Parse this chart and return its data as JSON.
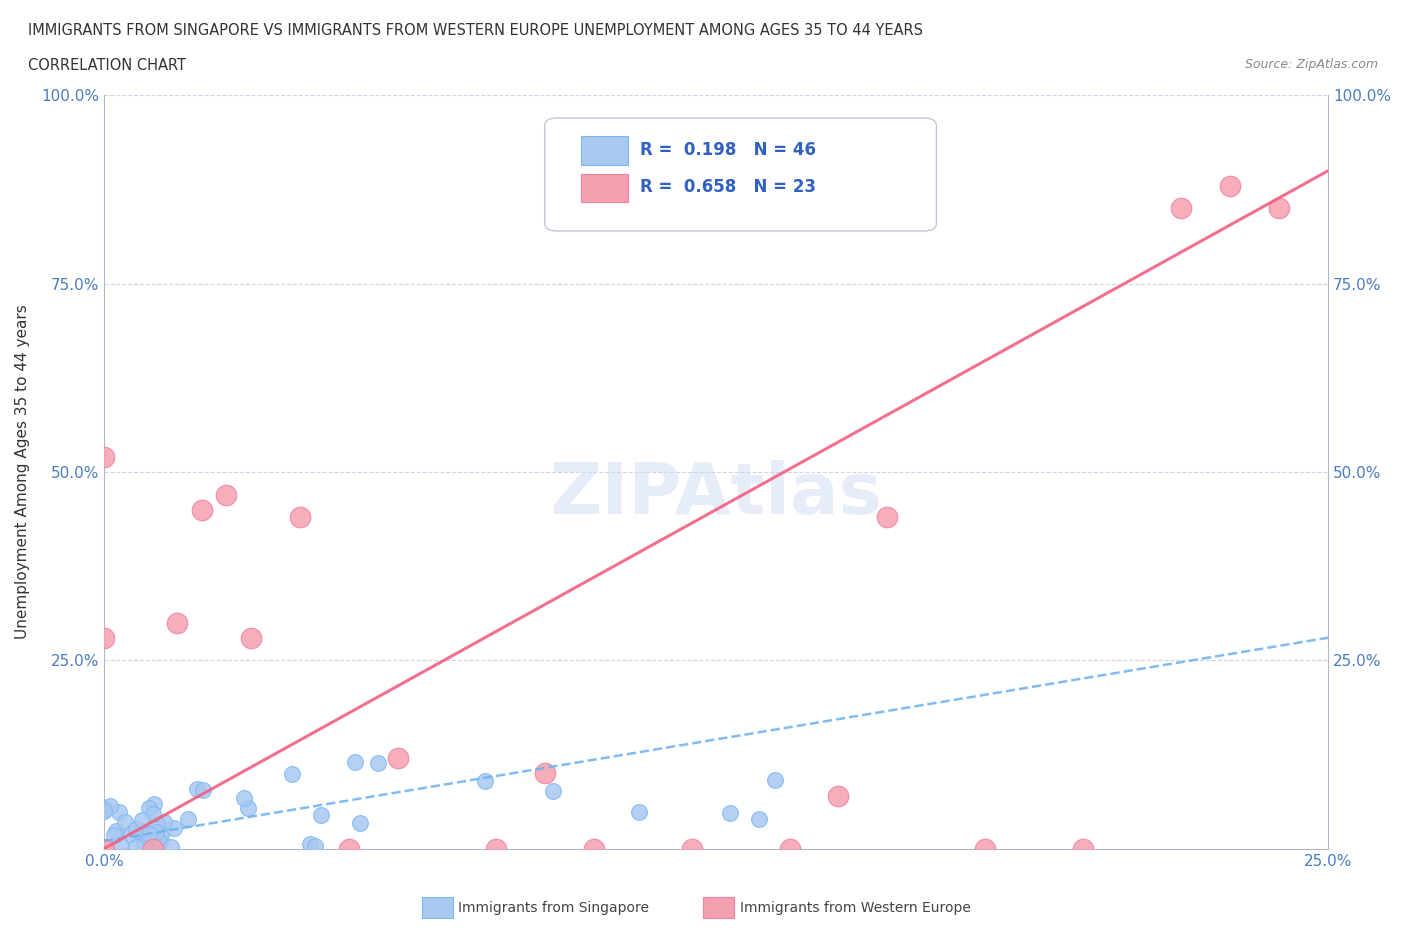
{
  "title_line1": "IMMIGRANTS FROM SINGAPORE VS IMMIGRANTS FROM WESTERN EUROPE UNEMPLOYMENT AMONG AGES 35 TO 44 YEARS",
  "title_line2": "CORRELATION CHART",
  "source_text": "Source: ZipAtlas.com",
  "ylabel": "Unemployment Among Ages 35 to 44 years",
  "xmin": 0.0,
  "xmax": 0.25,
  "ymin": 0.0,
  "ymax": 1.0,
  "singapore_R": 0.198,
  "singapore_N": 46,
  "western_europe_R": 0.658,
  "western_europe_N": 23,
  "singapore_color": "#a8c8f0",
  "western_europe_color": "#f5a0b0",
  "singapore_line_color": "#6ab0f0",
  "western_europe_line_color": "#f06080",
  "legend_color": "#3060c0",
  "watermark_color": "#c8d8f0",
  "sg_line_y0": 0.01,
  "sg_line_y1": 0.28,
  "we_line_y0": 0.0,
  "we_line_y1": 0.9,
  "ytick_positions": [
    0.0,
    0.25,
    0.5,
    0.75,
    1.0
  ],
  "ytick_labels": [
    "",
    "25.0%",
    "50.0%",
    "75.0%",
    "100.0%"
  ],
  "xtick_positions": [
    0.0,
    0.25
  ],
  "xtick_labels": [
    "0.0%",
    "25.0%"
  ],
  "right_ytick_labels": [
    "100.0%",
    "75.0%",
    "50.0%",
    "25.0%"
  ],
  "right_ytick_positions": [
    1.0,
    0.75,
    0.5,
    0.25
  ]
}
